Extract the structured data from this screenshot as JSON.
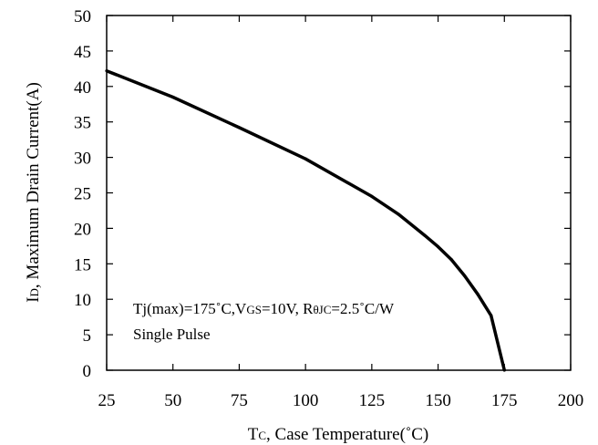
{
  "chart_data": {
    "type": "line",
    "xlabel": {
      "main": "T",
      "sub": "C",
      "rest": ", Case Temperature(˚C)"
    },
    "ylabel": {
      "main": "I",
      "sub": "D",
      "rest": ", Maximum Drain Current(A)"
    },
    "xlim": [
      25,
      200
    ],
    "ylim": [
      0,
      50
    ],
    "x_ticks": [
      "25",
      "50",
      "75",
      "100",
      "125",
      "150",
      "175",
      "200"
    ],
    "y_ticks": [
      "0",
      "5",
      "10",
      "15",
      "20",
      "25",
      "30",
      "35",
      "40",
      "45",
      "50"
    ],
    "grid": false,
    "series": [
      {
        "color": "#000000",
        "x": [
          25,
          50,
          75,
          100,
          125,
          135,
          145,
          150,
          155,
          160,
          165,
          170,
          175
        ],
        "y": [
          42.2,
          38.5,
          34.2,
          29.8,
          24.5,
          22,
          19,
          17.4,
          15.6,
          13.3,
          10.7,
          7.7,
          0
        ]
      }
    ],
    "annotation": {
      "line1": {
        "a": "Tj(max)=175˚C,V",
        "b": "GS",
        "c": "=10V, R",
        "d": "θJC",
        "e": "=2.5˚C/W"
      },
      "line2": "Single Pulse"
    }
  }
}
